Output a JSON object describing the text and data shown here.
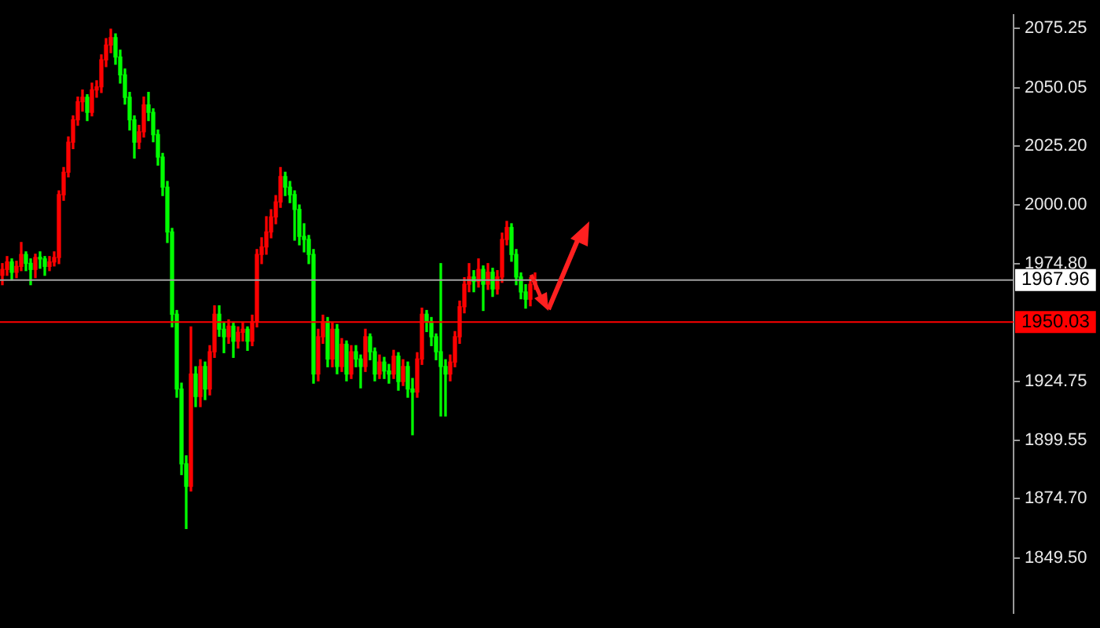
{
  "chart_data": {
    "type": "candlestick",
    "categories": [
      null,
      null,
      null,
      null,
      null,
      null,
      null,
      null,
      null,
      null,
      null,
      null,
      null,
      null,
      null,
      null,
      null,
      null,
      null,
      null,
      null,
      null,
      null,
      null,
      null,
      null,
      null,
      null,
      null,
      null,
      null,
      null,
      null,
      null,
      null,
      null,
      null,
      null,
      null,
      null,
      null,
      null,
      null,
      null,
      null,
      null,
      null,
      null,
      null,
      null,
      null,
      null,
      null,
      null,
      null,
      null,
      null,
      null,
      null,
      null,
      null,
      null,
      null,
      null,
      null,
      null,
      null,
      null,
      null,
      null,
      null,
      null,
      null,
      null,
      null,
      null,
      null,
      null,
      null,
      null,
      null,
      null,
      null,
      null,
      null,
      null,
      null,
      null,
      null,
      null,
      null,
      null,
      null,
      null,
      null,
      null,
      null,
      null,
      null,
      null,
      null,
      null,
      null,
      null,
      null,
      null,
      null,
      null,
      null,
      null,
      null,
      null,
      null,
      null,
      null,
      null,
      null,
      null,
      null,
      null,
      null,
      null,
      null,
      null,
      null,
      null,
      null,
      null,
      null,
      null,
      null,
      null,
      null,
      null,
      null,
      null,
      null,
      null,
      null,
      null,
      null,
      null,
      null,
      null,
      null,
      null,
      null,
      null,
      null,
      null,
      null,
      null,
      null,
      null,
      null,
      null,
      null,
      null,
      null,
      null,
      null,
      null,
      null,
      null,
      null,
      null,
      null,
      null,
      null,
      null,
      null,
      null,
      null,
      null,
      null,
      null,
      null,
      null,
      null,
      null,
      null,
      null,
      null,
      null,
      null,
      null,
      null,
      null,
      null,
      null,
      null,
      null,
      null,
      null,
      null,
      null,
      null,
      null,
      null,
      null,
      null,
      null,
      null,
      null,
      null,
      null,
      null,
      null,
      null,
      null,
      null,
      null,
      null,
      null,
      null
    ],
    "ohlc": [
      [
        1970.0,
        1975.0,
        1966.0,
        1972.5
      ],
      [
        1972.5,
        1978.0,
        1970.0,
        1975.7
      ],
      [
        1975.7,
        1977.0,
        1968.0,
        1971.3
      ],
      [
        1971.3,
        1976.0,
        1969.0,
        1973.8
      ],
      [
        1973.8,
        1984.0,
        1972.0,
        1978.9
      ],
      [
        1978.9,
        1980.0,
        1972.0,
        1975.1
      ],
      [
        1975.1,
        1977.0,
        1966.0,
        1972.5
      ],
      [
        1972.5,
        1979.0,
        1969.0,
        1977.6
      ],
      [
        1977.6,
        1980.0,
        1973.0,
        1977.0
      ],
      [
        1977.0,
        1978.0,
        1970.0,
        1973.8
      ],
      [
        1973.8,
        1978.0,
        1972.0,
        1975.7
      ],
      [
        1975.7,
        1980.0,
        1974.0,
        1977.6
      ],
      [
        1977.6,
        2006.0,
        1975.0,
        2004.4
      ],
      [
        2004.4,
        2016.0,
        2002.0,
        2014.0
      ],
      [
        2014.0,
        2029.0,
        2012.0,
        2026.8
      ],
      [
        2026.8,
        2038.0,
        2024.0,
        2036.3
      ],
      [
        2036.3,
        2046.0,
        2034.0,
        2044.0
      ],
      [
        2044.0,
        2049.0,
        2040.0,
        2045.9
      ],
      [
        2045.9,
        2047.0,
        2036.0,
        2039.5
      ],
      [
        2039.5,
        2052.0,
        2038.0,
        2049.1
      ],
      [
        2049.1,
        2053.0,
        2046.0,
        2050.4
      ],
      [
        2050.4,
        2064.0,
        2048.0,
        2061.9
      ],
      [
        2061.9,
        2071.0,
        2059.0,
        2068.2
      ],
      [
        2068.2,
        2075.0,
        2065.0,
        2071.4
      ],
      [
        2071.4,
        2073.0,
        2060.0,
        2063.1
      ],
      [
        2063.1,
        2066.0,
        2052.0,
        2055.5
      ],
      [
        2055.5,
        2058.0,
        2043.0,
        2045.9
      ],
      [
        2045.9,
        2048.0,
        2032.0,
        2036.3
      ],
      [
        2036.3,
        2038.0,
        2020.0,
        2026.8
      ],
      [
        2026.8,
        2034.0,
        2024.0,
        2031.2
      ],
      [
        2031.2,
        2046.0,
        2029.0,
        2042.7
      ],
      [
        2042.7,
        2048.0,
        2036.0,
        2039.5
      ],
      [
        2039.5,
        2041.0,
        2027.0,
        2030.0
      ],
      [
        2030.0,
        2032.0,
        2017.0,
        2020.4
      ],
      [
        2020.4,
        2022.0,
        2004.0,
        2007.6
      ],
      [
        2007.6,
        2010.0,
        1984.0,
        1988.5
      ],
      [
        1988.5,
        1990.0,
        1948.0,
        1953.4
      ],
      [
        1953.4,
        1955.0,
        1918.0,
        1921.5
      ],
      [
        1921.5,
        1924.0,
        1885.0,
        1889.6
      ],
      [
        1889.6,
        1893.0,
        1862.0,
        1880.0
      ],
      [
        1880.0,
        1948.0,
        1878.0,
        1927.9
      ],
      [
        1927.9,
        1931.0,
        1914.0,
        1918.3
      ],
      [
        1918.3,
        1934.0,
        1914.0,
        1931.1
      ],
      [
        1931.1,
        1933.0,
        1917.0,
        1921.5
      ],
      [
        1921.5,
        1940.0,
        1919.0,
        1937.4
      ],
      [
        1937.4,
        1957.0,
        1935.0,
        1953.4
      ],
      [
        1953.4,
        1957.0,
        1944.0,
        1947.0
      ],
      [
        1947.0,
        1950.0,
        1937.0,
        1943.8
      ],
      [
        1943.8,
        1951.0,
        1941.0,
        1948.3
      ],
      [
        1948.3,
        1950.0,
        1935.0,
        1941.9
      ],
      [
        1941.9,
        1948.0,
        1939.0,
        1945.7
      ],
      [
        1945.7,
        1950.0,
        1942.0,
        1947.0
      ],
      [
        1947.0,
        1948.0,
        1938.0,
        1941.9
      ],
      [
        1941.9,
        1953.0,
        1940.0,
        1950.2
      ],
      [
        1950.2,
        1981.0,
        1948.0,
        1978.9
      ],
      [
        1978.9,
        1986.0,
        1975.0,
        1982.1
      ],
      [
        1982.1,
        1995.0,
        1979.0,
        1988.5
      ],
      [
        1988.5,
        1998.0,
        1986.0,
        1994.9
      ],
      [
        1994.9,
        2004.0,
        1992.0,
        2001.3
      ],
      [
        2001.3,
        2016.0,
        1999.0,
        2012.1
      ],
      [
        2012.1,
        2014.0,
        2004.0,
        2007.6
      ],
      [
        2007.6,
        2010.0,
        2001.0,
        2004.4
      ],
      [
        2004.4,
        2006.0,
        1985.0,
        1998.1
      ],
      [
        1998.1,
        2000.0,
        1983.0,
        1986.6
      ],
      [
        1986.6,
        1992.0,
        1980.0,
        1985.3
      ],
      [
        1985.3,
        1987.0,
        1975.0,
        1978.9
      ],
      [
        1978.9,
        1981.0,
        1924.0,
        1927.9
      ],
      [
        1927.9,
        1947.0,
        1925.0,
        1943.8
      ],
      [
        1943.8,
        1953.0,
        1941.0,
        1950.2
      ],
      [
        1950.2,
        1952.0,
        1931.0,
        1934.3
      ],
      [
        1934.3,
        1950.0,
        1931.0,
        1947.0
      ],
      [
        1947.0,
        1949.0,
        1928.0,
        1931.1
      ],
      [
        1931.1,
        1943.0,
        1929.0,
        1940.6
      ],
      [
        1940.6,
        1942.0,
        1925.0,
        1927.9
      ],
      [
        1927.9,
        1940.0,
        1926.0,
        1937.4
      ],
      [
        1937.4,
        1940.0,
        1931.0,
        1934.3
      ],
      [
        1934.3,
        1936.0,
        1922.0,
        1931.1
      ],
      [
        1931.1,
        1947.0,
        1929.0,
        1943.8
      ],
      [
        1943.8,
        1945.0,
        1934.0,
        1937.4
      ],
      [
        1937.4,
        1939.0,
        1925.0,
        1927.9
      ],
      [
        1927.9,
        1936.0,
        1926.0,
        1933.0
      ],
      [
        1933.0,
        1935.0,
        1926.0,
        1929.2
      ],
      [
        1929.2,
        1932.0,
        1924.0,
        1927.9
      ],
      [
        1927.9,
        1938.0,
        1926.0,
        1935.5
      ],
      [
        1935.5,
        1937.0,
        1921.0,
        1924.7
      ],
      [
        1924.7,
        1934.0,
        1923.0,
        1931.1
      ],
      [
        1931.1,
        1933.0,
        1918.0,
        1921.5
      ],
      [
        1921.5,
        1926.0,
        1902.0,
        1920.2
      ],
      [
        1920.2,
        1937.0,
        1918.0,
        1934.3
      ],
      [
        1934.3,
        1956.0,
        1932.0,
        1953.4
      ],
      [
        1953.4,
        1955.0,
        1946.0,
        1950.2
      ],
      [
        1950.2,
        1952.0,
        1940.0,
        1943.8
      ],
      [
        1943.8,
        1945.0,
        1934.0,
        1937.4
      ],
      [
        1937.4,
        1975.0,
        1910.0,
        1931.1
      ],
      [
        1931.1,
        1934.0,
        1910.0,
        1927.9
      ],
      [
        1927.9,
        1936.0,
        1925.0,
        1933.0
      ],
      [
        1933.0,
        1946.0,
        1931.0,
        1943.8
      ],
      [
        1943.8,
        1959.0,
        1941.0,
        1956.6
      ],
      [
        1956.6,
        1969.0,
        1954.0,
        1966.2
      ],
      [
        1966.2,
        1975.0,
        1963.0,
        1969.3
      ],
      [
        1969.3,
        1972.0,
        1963.0,
        1967.4
      ],
      [
        1967.4,
        1977.0,
        1965.0,
        1972.5
      ],
      [
        1972.5,
        1974.0,
        1955.0,
        1966.2
      ],
      [
        1966.2,
        1975.0,
        1964.0,
        1971.3
      ],
      [
        1971.3,
        1973.0,
        1961.0,
        1964.2
      ],
      [
        1964.2,
        1972.0,
        1962.0,
        1969.3
      ],
      [
        1969.3,
        1988.0,
        1967.0,
        1985.3
      ],
      [
        1985.3,
        1993.0,
        1983.0,
        1990.4
      ],
      [
        1990.4,
        1992.0,
        1976.0,
        1978.9
      ],
      [
        1978.9,
        1981.0,
        1966.0,
        1969.3
      ],
      [
        1969.3,
        1971.0,
        1960.0,
        1962.9
      ],
      [
        1962.9,
        1966.0,
        1956.0,
        1959.8
      ],
      [
        1959.8,
        1969.0,
        1957.0,
        1966.2
      ],
      [
        1966.2,
        1971.0,
        1964.0,
        1968.0
      ],
      null,
      null,
      null,
      null,
      null,
      null,
      null,
      null,
      null,
      null,
      null,
      null,
      null,
      null,
      null,
      null,
      null,
      null,
      null,
      null,
      null,
      null,
      null,
      null,
      null,
      null,
      null,
      null,
      null,
      null,
      null,
      null,
      null,
      null,
      null,
      null,
      null,
      null,
      null,
      null,
      null,
      null,
      null,
      null,
      null,
      null,
      null,
      null,
      null,
      null,
      null,
      null,
      null,
      null,
      null,
      null,
      null,
      null,
      null,
      null,
      null,
      null,
      null,
      null,
      null,
      null,
      null,
      null,
      null,
      null,
      null,
      null,
      null,
      null,
      null,
      null,
      null,
      null,
      null,
      null,
      null,
      null,
      null,
      null,
      null,
      null,
      null,
      null,
      null,
      null,
      null,
      null,
      null,
      null,
      null,
      null,
      null,
      null,
      null,
      null,
      null
    ],
    "colors": [
      "#ff0000",
      "#ff0000",
      "#00ff00",
      "#ff0000",
      "#ff0000",
      "#00ff00",
      "#00ff00",
      "#ff0000",
      "#00ff00",
      "#00ff00",
      "#ff0000",
      "#ff0000",
      "#ff0000",
      "#ff0000",
      "#ff0000",
      "#ff0000",
      "#ff0000",
      "#ff0000",
      "#00ff00",
      "#ff0000",
      "#ff0000",
      "#ff0000",
      "#ff0000",
      "#ff0000",
      "#00ff00",
      "#00ff00",
      "#00ff00",
      "#00ff00",
      "#00ff00",
      "#ff0000",
      "#ff0000",
      "#00ff00",
      "#00ff00",
      "#00ff00",
      "#00ff00",
      "#00ff00",
      "#00ff00",
      "#00ff00",
      "#00ff00",
      "#00ff00",
      "#ff0000",
      "#00ff00",
      "#ff0000",
      "#00ff00",
      "#ff0000",
      "#ff0000",
      "#00ff00",
      "#00ff00",
      "#ff0000",
      "#00ff00",
      "#ff0000",
      "#ff0000",
      "#00ff00",
      "#ff0000",
      "#ff0000",
      "#ff0000",
      "#ff0000",
      "#ff0000",
      "#ff0000",
      "#ff0000",
      "#00ff00",
      "#00ff00",
      "#00ff00",
      "#00ff00",
      "#00ff00",
      "#00ff00",
      "#00ff00",
      "#ff0000",
      "#ff0000",
      "#00ff00",
      "#ff0000",
      "#00ff00",
      "#ff0000",
      "#00ff00",
      "#ff0000",
      "#00ff00",
      "#00ff00",
      "#ff0000",
      "#00ff00",
      "#00ff00",
      "#ff0000",
      "#00ff00",
      "#00ff00",
      "#ff0000",
      "#00ff00",
      "#ff0000",
      "#00ff00",
      "#00ff00",
      "#ff0000",
      "#ff0000",
      "#00ff00",
      "#00ff00",
      "#00ff00",
      "#00ff00",
      "#00ff00",
      "#ff0000",
      "#ff0000",
      "#ff0000",
      "#ff0000",
      "#ff0000",
      "#00ff00",
      "#ff0000",
      "#00ff00",
      "#ff0000",
      "#00ff00",
      "#ff0000",
      "#ff0000",
      "#ff0000",
      "#00ff00",
      "#00ff00",
      "#00ff00",
      "#00ff00",
      "#ff0000",
      "#ff0000",
      null,
      null,
      null,
      null,
      null,
      null,
      null,
      null,
      null,
      null,
      null,
      null,
      null,
      null,
      null,
      null,
      null,
      null,
      null,
      null,
      null,
      null,
      null,
      null,
      null,
      null,
      null,
      null,
      null,
      null,
      null,
      null,
      null,
      null,
      null,
      null,
      null,
      null,
      null,
      null,
      null,
      null,
      null,
      null,
      null,
      null,
      null,
      null,
      null,
      null,
      null,
      null,
      null,
      null,
      null,
      null,
      null,
      null,
      null,
      null,
      null,
      null,
      null,
      null,
      null,
      null,
      null,
      null,
      null,
      null,
      null,
      null,
      null,
      null,
      null,
      null,
      null,
      null,
      null,
      null,
      null,
      null,
      null,
      null,
      null,
      null,
      null,
      null,
      null,
      null,
      null,
      null,
      null,
      null,
      null,
      null,
      null,
      null,
      null,
      null,
      null
    ],
    "ylim": [
      1826,
      2081
    ],
    "yticks": [
      2075.25,
      2050.05,
      {
        "value": 2025.2,
        "label": "2025.20"
      },
      {
        "value": 2000,
        "label": "2000.00"
      },
      {
        "value": 1974.8,
        "label": "1974.80"
      },
      1924.75,
      1899.55,
      {
        "value": 1874.7,
        "label": "1874.70"
      },
      {
        "value": 1849.5,
        "label": "1849.50"
      }
    ],
    "ref_lines": [
      {
        "axis": "y",
        "value": 1967.96,
        "label": "1967.96",
        "color": "#a0a0a0"
      },
      {
        "axis": "y",
        "value": 1950.03,
        "label": "1950.03",
        "color": "#ff0000"
      }
    ],
    "tick_labels": "y",
    "grid": false,
    "legend": false
  }
}
